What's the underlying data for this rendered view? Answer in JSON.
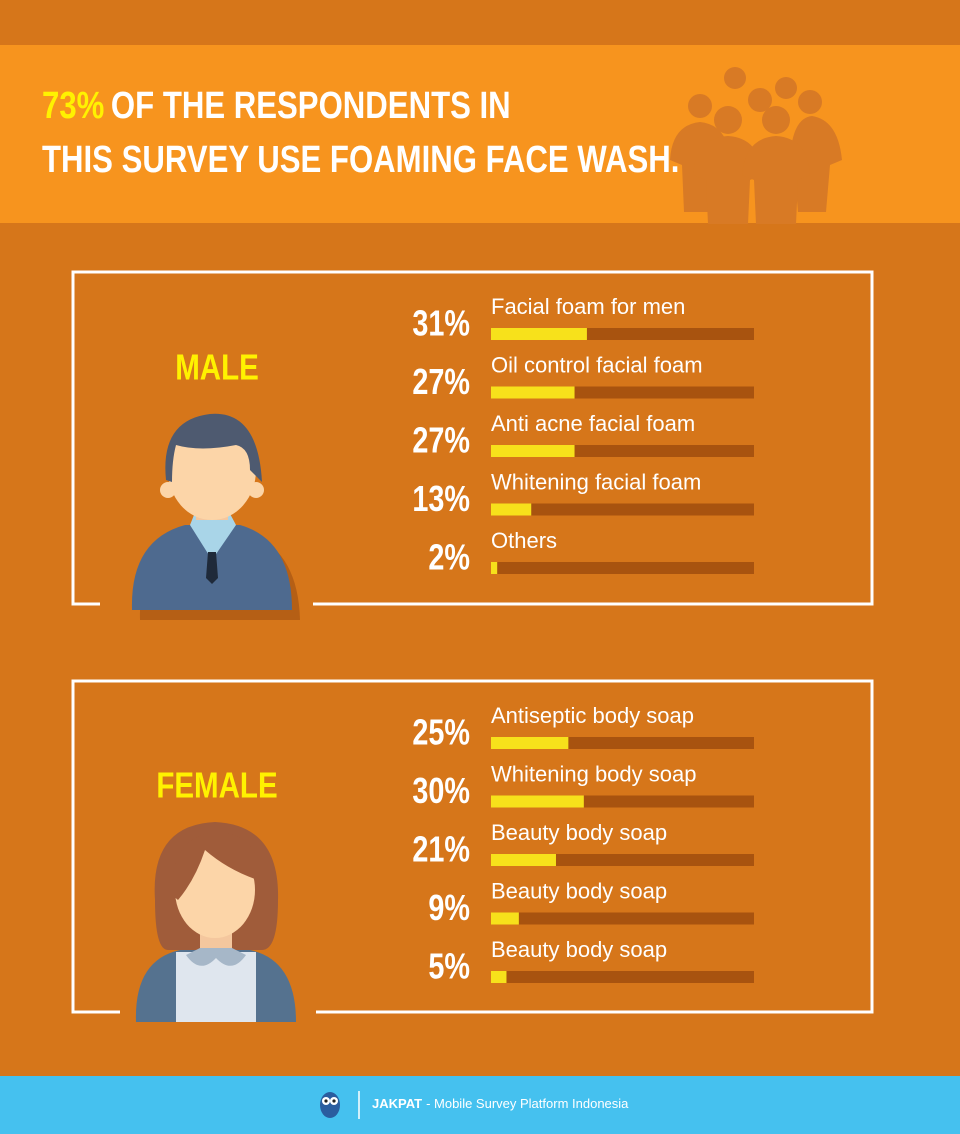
{
  "header": {
    "highlight": "73%",
    "line1": "OF THE RESPONDENTS IN",
    "line2": "THIS SURVEY USE FOAMING FACE WASH."
  },
  "chart_data": [
    {
      "type": "bar",
      "title": "MALE",
      "categories": [
        "Facial foam for men",
        "Oil control facial foam",
        "Anti acne facial foam",
        "Whitening facial foam",
        "Others"
      ],
      "values": [
        31,
        27,
        27,
        13,
        2
      ],
      "value_labels": [
        "31%",
        "27%",
        "27%",
        "13%",
        "2%"
      ],
      "xlim": [
        0,
        85
      ],
      "color": "#f7e11b",
      "track_color": "#a8530f"
    },
    {
      "type": "bar",
      "title": "FEMALE",
      "categories": [
        "Antiseptic body soap",
        "Whitening body soap",
        "Beauty body soap",
        "Beauty body soap",
        "Beauty body soap"
      ],
      "values": [
        25,
        30,
        21,
        9,
        5
      ],
      "value_labels": [
        "25%",
        "30%",
        "21%",
        "9%",
        "5%"
      ],
      "xlim": [
        0,
        85
      ],
      "color": "#f7e11b",
      "track_color": "#a8530f"
    }
  ],
  "footer": {
    "brand": "JAKPAT",
    "tagline": "- Mobile Survey Platform Indonesia"
  }
}
